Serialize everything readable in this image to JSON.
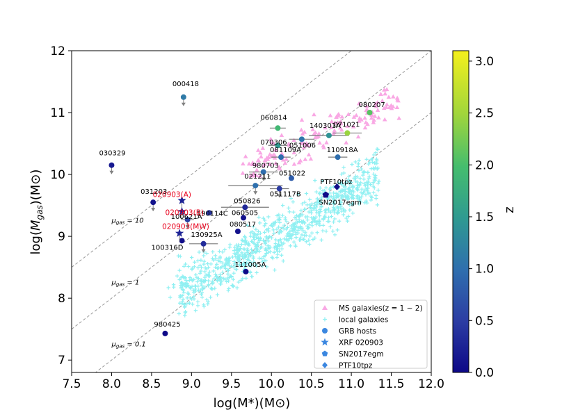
{
  "chart_data": {
    "type": "scatter",
    "xlabel": "log(M*)(M⊙)",
    "ylabel": "log(M_gas)(M⊙)",
    "xlim": [
      7.5,
      12.0
    ],
    "ylim": [
      6.8,
      12.0
    ],
    "xticks": [
      "7.5",
      "8.0",
      "8.5",
      "9.0",
      "9.5",
      "10.0",
      "10.5",
      "11.0",
      "11.5",
      "12.0"
    ],
    "yticks": [
      "7",
      "8",
      "9",
      "10",
      "11",
      "12"
    ],
    "colorbar": {
      "label": "z",
      "min": 0.0,
      "max": 3.1,
      "ticks": [
        "0.0",
        "0.5",
        "1.0",
        "1.5",
        "2.0",
        "2.5",
        "3.0"
      ]
    },
    "reference_lines": [
      {
        "label": "μgas = 10",
        "offset": 1.0
      },
      {
        "label": "μgas = 1",
        "offset": 0.0
      },
      {
        "label": "μgas = 0.1",
        "offset": -1.0
      }
    ],
    "legend": {
      "position": "lower-right",
      "entries": [
        "MS galaxies(z = 1 ~ 2)",
        "local galaxies",
        "GRB hosts",
        "XRF 020903",
        "SN2017egm",
        "PTF10tpz"
      ]
    },
    "grb_hosts": [
      {
        "label": "000418",
        "x": 8.9,
        "y": 11.25,
        "z": 1.12,
        "upper_limit": true
      },
      {
        "label": "030329",
        "x": 8.0,
        "y": 10.15,
        "z": 0.17,
        "upper_limit": true
      },
      {
        "label": "031203",
        "x": 8.52,
        "y": 9.55,
        "z": 0.11,
        "upper_limit": true
      },
      {
        "label": "190114C",
        "x": 9.22,
        "y": 9.38,
        "z": 0.42
      },
      {
        "label": "100621A",
        "x": 8.95,
        "y": 9.27,
        "z": 0.54,
        "upper_limit": true
      },
      {
        "label": "100316D",
        "x": 8.88,
        "y": 8.93,
        "z": 0.06
      },
      {
        "label": "130925A",
        "x": 9.15,
        "y": 8.88,
        "z": 0.35,
        "upper_limit": true
      },
      {
        "label": "980425",
        "x": 8.67,
        "y": 7.43,
        "z": 0.01
      },
      {
        "label": "021211",
        "x": 9.8,
        "y": 9.82,
        "z": 1.0,
        "upper_limit": true
      },
      {
        "label": "050826",
        "x": 9.67,
        "y": 9.47,
        "z": 0.3
      },
      {
        "label": "060505",
        "x": 9.65,
        "y": 9.3,
        "z": 0.09
      },
      {
        "label": "080517",
        "x": 9.58,
        "y": 9.08,
        "z": 0.09
      },
      {
        "label": "111005A",
        "x": 9.68,
        "y": 8.43,
        "z": 0.01
      },
      {
        "label": "980703",
        "x": 9.9,
        "y": 10.04,
        "z": 0.97,
        "upper_limit": true
      },
      {
        "label": "051022",
        "x": 10.25,
        "y": 9.94,
        "z": 0.8
      },
      {
        "label": "051117B",
        "x": 10.1,
        "y": 9.77,
        "z": 0.48,
        "upper_limit": true
      },
      {
        "label": "081109A",
        "x": 10.12,
        "y": 10.28,
        "z": 0.98
      },
      {
        "label": "070306",
        "x": 10.08,
        "y": 10.47,
        "z": 1.5
      },
      {
        "label": "060814",
        "x": 10.08,
        "y": 10.75,
        "z": 1.92
      },
      {
        "label": "051006",
        "x": 10.38,
        "y": 10.57,
        "z": 1.06
      },
      {
        "label": "140301A",
        "x": 10.72,
        "y": 10.63,
        "z": 1.42
      },
      {
        "label": "071021",
        "x": 10.95,
        "y": 10.67,
        "z": 2.45
      },
      {
        "label": "110918A",
        "x": 10.83,
        "y": 10.28,
        "z": 0.98
      },
      {
        "label": "080207",
        "x": 11.23,
        "y": 11.0,
        "z": 2.09
      }
    ],
    "xrf_020903": [
      {
        "label": "020903(A)",
        "x": 8.88,
        "y": 9.58,
        "z": 0.25
      },
      {
        "label": "020903(B)",
        "x": 8.88,
        "y": 9.4,
        "z": 0.25
      },
      {
        "label": "020903(MW)",
        "x": 8.85,
        "y": 9.05,
        "z": 0.25
      }
    ],
    "sn2017egm": {
      "label": "SN2017egm",
      "x": 10.68,
      "y": 9.67,
      "z": 0.03
    },
    "ptf10tpz": {
      "label": "PTF10tpz",
      "x": 10.82,
      "y": 9.8,
      "z": 0.04
    }
  },
  "colors": {
    "ms_galaxies": "#f9a8e4",
    "local_galaxies": "#8ff0f2",
    "legend_symbol": "#3b87e0",
    "annotation_red": "#e8001c",
    "reference_line": "#999999"
  }
}
